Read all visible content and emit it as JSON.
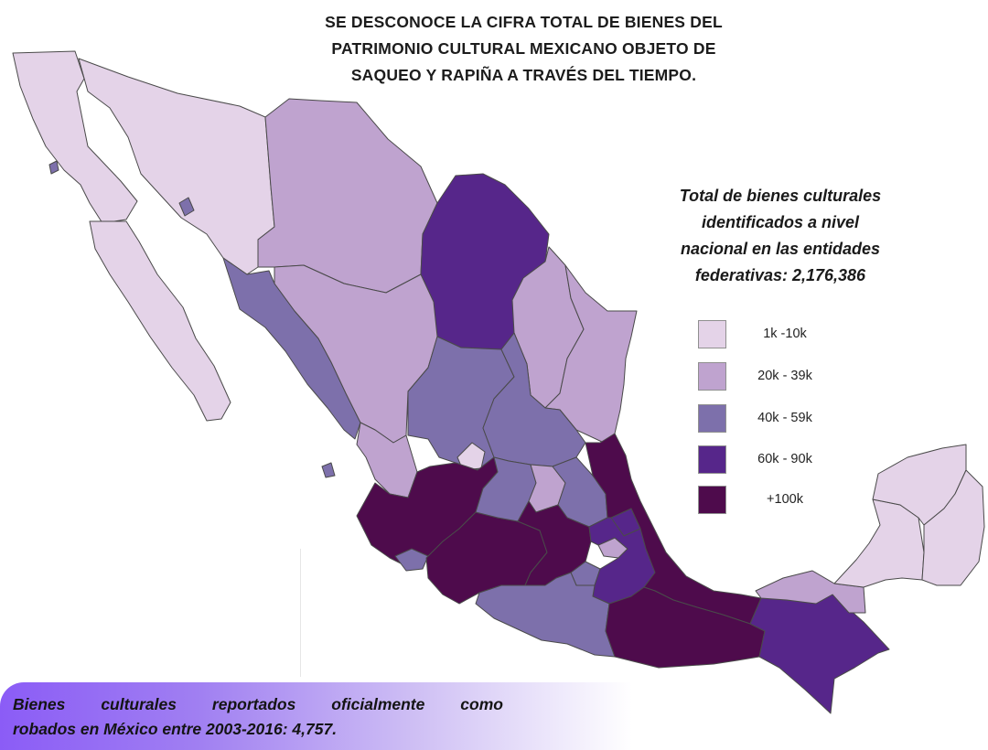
{
  "title_lines": [
    "SE DESCONOCE  LA CIFRA TOTAL DE BIENES DEL",
    "PATRIMONIO CULTURAL MEXICANO OBJETO DE",
    "SAQUEO Y RAPIÑA A TRAVÉS DEL TIEMPO."
  ],
  "legend_title_lines": [
    "Total de bienes culturales",
    "identificados a nivel",
    "nacional en las entidades",
    "federativas: 2,176,386"
  ],
  "legend": [
    {
      "label": "1k -10k",
      "color": "#e4d3e8"
    },
    {
      "label": "20k - 39k",
      "color": "#bfa3cf"
    },
    {
      "label": "40k - 59k",
      "color": "#7d70ab"
    },
    {
      "label": "60k - 90k",
      "color": "#56268a"
    },
    {
      "label": "+100k",
      "color": "#4e0b4c"
    }
  ],
  "banner": {
    "line1_words": [
      "Bienes",
      "culturales",
      "reportados",
      "oficialmente",
      "como"
    ],
    "line2": "robados en México entre 2003-2016: 4,757."
  },
  "states": [
    {
      "name": "Baja California",
      "cls": "c1"
    },
    {
      "name": "Baja California Sur",
      "cls": "c1"
    },
    {
      "name": "Sonora",
      "cls": "c1"
    },
    {
      "name": "Chihuahua",
      "cls": "c2"
    },
    {
      "name": "Coahuila",
      "cls": "c4"
    },
    {
      "name": "Nuevo León",
      "cls": "c2"
    },
    {
      "name": "Tamaulipas",
      "cls": "c2"
    },
    {
      "name": "Sinaloa",
      "cls": "c3"
    },
    {
      "name": "Durango",
      "cls": "c2"
    },
    {
      "name": "Zacatecas",
      "cls": "c3"
    },
    {
      "name": "San Luis Potosí",
      "cls": "c3"
    },
    {
      "name": "Nayarit",
      "cls": "c2"
    },
    {
      "name": "Aguascalientes",
      "cls": "c1"
    },
    {
      "name": "Jalisco",
      "cls": "c5"
    },
    {
      "name": "Colima",
      "cls": "c3"
    },
    {
      "name": "Michoacán",
      "cls": "c5"
    },
    {
      "name": "Guanajuato",
      "cls": "c3"
    },
    {
      "name": "Querétaro",
      "cls": "c2"
    },
    {
      "name": "Hidalgo",
      "cls": "c3"
    },
    {
      "name": "Estado de México",
      "cls": "c5"
    },
    {
      "name": "Ciudad de México",
      "cls": "c2"
    },
    {
      "name": "Morelos",
      "cls": "c3"
    },
    {
      "name": "Tlaxcala",
      "cls": "c4"
    },
    {
      "name": "Puebla",
      "cls": "c4"
    },
    {
      "name": "Veracruz",
      "cls": "c5"
    },
    {
      "name": "Guerrero",
      "cls": "c3"
    },
    {
      "name": "Oaxaca",
      "cls": "c5"
    },
    {
      "name": "Chiapas",
      "cls": "c4"
    },
    {
      "name": "Tabasco",
      "cls": "c2"
    },
    {
      "name": "Campeche",
      "cls": "c1"
    },
    {
      "name": "Yucatán",
      "cls": "c1"
    },
    {
      "name": "Quintana Roo",
      "cls": "c1"
    }
  ]
}
